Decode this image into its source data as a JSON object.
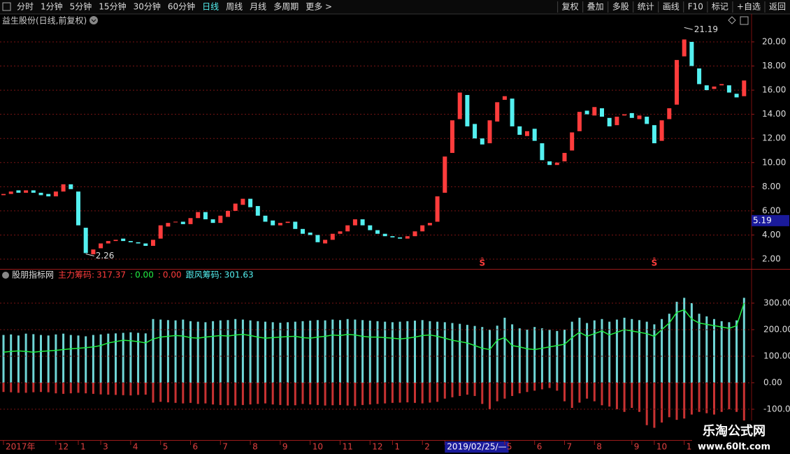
{
  "toolbar": {
    "left": [
      {
        "label": "分时"
      },
      {
        "label": "1分钟"
      },
      {
        "label": "5分钟"
      },
      {
        "label": "15分钟"
      },
      {
        "label": "30分钟"
      },
      {
        "label": "60分钟"
      },
      {
        "label": "日线",
        "active": true
      },
      {
        "label": "周线"
      },
      {
        "label": "月线"
      },
      {
        "label": "多周期"
      },
      {
        "label": "更多 >"
      }
    ],
    "right": [
      {
        "label": "复权"
      },
      {
        "label": "叠加"
      },
      {
        "label": "多股"
      },
      {
        "label": "统计"
      },
      {
        "label": "画线"
      },
      {
        "label": "F10"
      },
      {
        "label": "标记"
      },
      {
        "label": "+自选"
      },
      {
        "label": "返回"
      }
    ]
  },
  "watermark": {
    "title": "乐淘公式网",
    "url": "www.60lt.com"
  },
  "chart_data": [
    {
      "type": "candlestick",
      "title": "益生股份(日线,前复权)",
      "categories": [
        "2017年",
        null,
        null,
        null,
        null,
        null,
        null,
        "12",
        null,
        null,
        "1",
        null,
        null,
        "3",
        null,
        null,
        null,
        "4",
        null,
        null,
        null,
        "5",
        null,
        null,
        null,
        "6",
        null,
        null,
        null,
        "7",
        null,
        null,
        null,
        "8",
        null,
        null,
        null,
        "9",
        null,
        null,
        null,
        "10",
        null,
        null,
        null,
        "11",
        null,
        null,
        null,
        "12",
        null,
        null,
        "1",
        null,
        null,
        null,
        "2",
        null,
        null,
        "2019/02/25/—",
        null,
        null,
        null,
        null,
        null,
        null,
        null,
        "5",
        null,
        null,
        null,
        "6",
        null,
        null,
        null,
        "7",
        null,
        null,
        null,
        "8",
        null,
        null,
        null,
        null,
        "9",
        null,
        null,
        "10",
        null,
        null,
        null,
        "1",
        null,
        null,
        null,
        null,
        null,
        null,
        null,
        null
      ],
      "open": [
        7.3,
        7.4,
        7.7,
        7.5,
        7.7,
        7.5,
        7.4,
        7.2,
        7.6,
        8.2,
        7.6,
        4.6,
        2.4,
        2.9,
        3.3,
        3.5,
        3.7,
        3.5,
        3.4,
        3.3,
        3.1,
        3.7,
        4.7,
        5.1,
        5.1,
        4.9,
        5.4,
        5.9,
        5.3,
        5.0,
        5.5,
        6.0,
        6.5,
        7.0,
        6.4,
        5.6,
        5.2,
        4.8,
        5.0,
        5.1,
        4.5,
        4.2,
        4.0,
        3.3,
        3.6,
        4.1,
        4.3,
        4.8,
        5.3,
        4.8,
        4.4,
        4.1,
        3.9,
        3.8,
        3.7,
        3.9,
        4.3,
        4.8,
        5.1,
        7.5,
        10.8,
        13.6,
        15.6,
        13.2,
        12.0,
        11.6,
        13.4,
        15.2,
        15.3,
        13.0,
        12.2,
        12.8,
        11.6,
        10.1,
        9.8,
        10.1,
        11.0,
        12.6,
        14.3,
        13.9,
        14.5,
        13.7,
        13.1,
        13.9,
        14.1,
        13.6,
        13.8,
        13.1,
        11.8,
        13.6,
        14.8,
        18.8,
        20.0,
        17.8,
        16.4,
        16.1,
        16.4,
        16.4,
        15.7,
        15.5
      ],
      "close": [
        7.4,
        7.6,
        7.5,
        7.7,
        7.5,
        7.3,
        7.2,
        7.6,
        8.2,
        7.8,
        4.8,
        2.5,
        2.8,
        3.3,
        3.5,
        3.6,
        3.5,
        3.4,
        3.3,
        3.1,
        3.6,
        4.8,
        5.0,
        5.1,
        4.9,
        5.4,
        5.9,
        5.3,
        5.0,
        5.6,
        6.0,
        6.6,
        7.0,
        6.3,
        5.6,
        5.1,
        4.8,
        5.0,
        5.1,
        4.5,
        4.1,
        4.0,
        3.4,
        3.6,
        4.1,
        4.3,
        4.8,
        5.3,
        4.8,
        4.4,
        4.1,
        3.9,
        3.8,
        3.7,
        3.9,
        4.3,
        4.8,
        5.0,
        7.2,
        10.5,
        13.5,
        15.8,
        13.0,
        12.0,
        11.5,
        13.5,
        15.0,
        15.5,
        13.0,
        12.3,
        12.6,
        11.8,
        10.2,
        9.8,
        10.0,
        10.8,
        12.5,
        14.2,
        14.0,
        14.6,
        13.8,
        13.0,
        13.8,
        14.0,
        13.7,
        13.9,
        13.2,
        11.6,
        13.5,
        14.5,
        18.5,
        20.2,
        18.0,
        16.5,
        16.0,
        16.3,
        16.5,
        15.8,
        15.4,
        16.8
      ],
      "up_color": "#ff3c3c",
      "down_color": "#54f0f0",
      "ylim": [
        1.19,
        21.27
      ],
      "yticks": [
        {
          "value": 2,
          "label": "2.00"
        },
        {
          "value": 4,
          "label": "4.00"
        },
        {
          "value": 6,
          "label": "6.00"
        },
        {
          "value": 8,
          "label": "8.00"
        },
        {
          "value": 10,
          "label": "10.00"
        },
        {
          "value": 12,
          "label": "12.00"
        },
        {
          "value": 14,
          "label": "14.00"
        },
        {
          "value": 16,
          "label": "16.00"
        },
        {
          "value": 18,
          "label": "18.00"
        },
        {
          "value": 20,
          "label": "20.00"
        }
      ],
      "grid": true,
      "high_label": 21.19,
      "low_label": 2.26,
      "cursor_price": 5.19,
      "signals": {
        "label": "Ŝ",
        "at": [
          64,
          87
        ]
      }
    },
    {
      "type": "bar-line",
      "title": "股朋指标网",
      "readouts": [
        {
          "label": "主力筹码:",
          "value": 317.37,
          "color": "#ff3c3c"
        },
        {
          "label": ":",
          "value": {
            "value": 0,
            "label": "0.00"
          },
          "color": "#22ee44"
        },
        {
          "label": ":",
          "value": {
            "value": 0,
            "label": "0.00"
          },
          "color": "#ff3c3c"
        },
        {
          "label": "跟风筹码:",
          "value": 301.63,
          "color": "#54f0f0"
        }
      ],
      "series": [
        {
          "kind": "bar",
          "color": "#6fd6d6",
          "values": [
            180,
            182,
            178,
            185,
            183,
            180,
            178,
            182,
            185,
            180,
            178,
            175,
            180,
            182,
            185,
            186,
            188,
            190,
            188,
            186,
            240,
            238,
            236,
            235,
            238,
            232,
            230,
            228,
            232,
            235,
            236,
            240,
            238,
            235,
            232,
            230,
            228,
            226,
            228,
            230,
            232,
            234,
            236,
            235,
            238,
            236,
            240,
            238,
            236,
            234,
            232,
            230,
            228,
            230,
            232,
            234,
            236,
            232,
            230,
            228,
            225,
            222,
            218,
            214,
            210,
            200,
            215,
            245,
            220,
            205,
            200,
            210,
            205,
            200,
            195,
            200,
            230,
            245,
            225,
            235,
            240,
            230,
            238,
            245,
            240,
            236,
            230,
            220,
            240,
            260,
            305,
            320,
            300,
            260,
            250,
            240,
            232,
            228,
            235,
            320
          ]
        },
        {
          "kind": "bar",
          "color": "#c83232",
          "values": [
            -35,
            -36,
            -38,
            -38,
            -36,
            -35,
            -36,
            -40,
            -42,
            -40,
            -38,
            -40,
            -42,
            -44,
            -45,
            -46,
            -47,
            -48,
            -46,
            -45,
            -75,
            -72,
            -74,
            -76,
            -78,
            -76,
            -80,
            -78,
            -82,
            -84,
            -85,
            -86,
            -84,
            -82,
            -80,
            -78,
            -82,
            -84,
            -86,
            -85,
            -80,
            -82,
            -84,
            -86,
            -85,
            -84,
            -86,
            -88,
            -84,
            -82,
            -80,
            -78,
            -76,
            -75,
            -74,
            -76,
            -78,
            -75,
            -72,
            -60,
            -55,
            -50,
            -45,
            -50,
            -80,
            -100,
            -70,
            -60,
            -50,
            -40,
            -35,
            -30,
            -25,
            -20,
            -30,
            -70,
            -95,
            -75,
            -60,
            -70,
            -85,
            -90,
            -100,
            -110,
            -95,
            -110,
            -160,
            -170,
            -150,
            -130,
            -140,
            -135,
            -120,
            -110,
            -115,
            -120,
            -110,
            -100,
            -110,
            -160
          ]
        },
        {
          "kind": "line",
          "color": "#22ee44",
          "values": [
            115,
            118,
            120,
            118,
            115,
            118,
            120,
            122,
            125,
            128,
            130,
            132,
            135,
            140,
            150,
            155,
            160,
            158,
            155,
            150,
            165,
            172,
            175,
            178,
            176,
            170,
            168,
            172,
            175,
            178,
            176,
            180,
            182,
            178,
            172,
            168,
            170,
            172,
            174,
            175,
            170,
            168,
            172,
            175,
            180,
            178,
            182,
            180,
            175,
            172,
            172,
            170,
            168,
            165,
            168,
            172,
            178,
            180,
            175,
            168,
            160,
            155,
            150,
            140,
            130,
            125,
            160,
            170,
            140,
            135,
            128,
            125,
            130,
            135,
            140,
            145,
            170,
            190,
            175,
            185,
            195,
            180,
            190,
            200,
            195,
            190,
            185,
            175,
            200,
            225,
            265,
            275,
            240,
            225,
            220,
            215,
            210,
            205,
            215,
            300
          ]
        }
      ],
      "ylim": [
        -216,
        400
      ],
      "yticks": [
        {
          "value": -100,
          "label": "-100.00"
        },
        {
          "value": 0,
          "label": "0.00"
        },
        {
          "value": 100,
          "label": "100.00"
        },
        {
          "value": 200,
          "label": "200.00"
        },
        {
          "value": 300,
          "label": "300.00"
        }
      ],
      "grid": true
    }
  ]
}
